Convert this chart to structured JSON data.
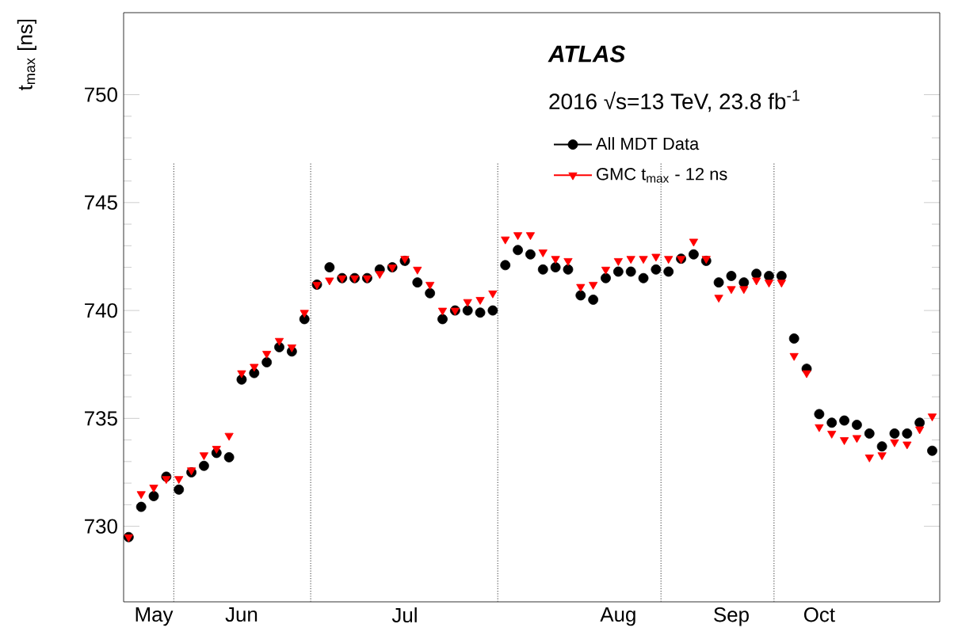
{
  "chart_data": {
    "type": "scatter",
    "ylabel": "t$_{max}$ [ns]",
    "annotations": [
      "ATLAS",
      "2016 √s=13 TeV, 23.8 fb$^{-1}$"
    ],
    "categories": [
      null,
      null,
      "May",
      null,
      null,
      null,
      null,
      null,
      null,
      "Jun",
      null,
      null,
      null,
      null,
      null,
      null,
      null,
      null,
      null,
      null,
      null,
      null,
      "Jul",
      null,
      null,
      null,
      null,
      null,
      null,
      null,
      null,
      null,
      null,
      null,
      null,
      null,
      null,
      null,
      null,
      "Aug",
      null,
      null,
      null,
      null,
      null,
      null,
      null,
      null,
      "Sep",
      null,
      null,
      null,
      null,
      null,
      null,
      "Oct",
      null,
      null,
      null,
      null,
      null,
      null,
      null,
      null,
      null
    ],
    "series": [
      {
        "name": "All MDT Data",
        "color": "#000000",
        "marker": "circle",
        "values": [
          729.5,
          730.9,
          731.4,
          732.3,
          731.7,
          732.5,
          732.8,
          733.4,
          733.2,
          736.8,
          737.1,
          737.6,
          738.3,
          738.1,
          739.6,
          741.2,
          742.0,
          741.5,
          741.5,
          741.5,
          741.9,
          742.0,
          742.3,
          741.3,
          740.8,
          739.6,
          740.0,
          740.0,
          739.9,
          740.0,
          742.1,
          742.8,
          742.6,
          741.9,
          742.0,
          741.9,
          740.7,
          740.5,
          741.5,
          741.8,
          741.8,
          741.5,
          741.9,
          741.8,
          742.4,
          742.6,
          742.3,
          741.3,
          741.6,
          741.3,
          741.7,
          741.6,
          741.6,
          738.7,
          737.3,
          735.2,
          734.8,
          734.9,
          734.7,
          734.3,
          733.7,
          734.3,
          734.3,
          734.8,
          733.5
        ]
      },
      {
        "name": "GMC t$_{max}$ - 12 ns",
        "color": "#ff0000",
        "marker": "triangle",
        "values": [
          729.5,
          731.5,
          731.8,
          732.2,
          732.2,
          732.6,
          733.3,
          733.6,
          734.2,
          737.1,
          737.4,
          738.0,
          738.6,
          738.3,
          739.9,
          741.2,
          741.4,
          741.5,
          741.5,
          741.5,
          741.7,
          742.0,
          742.4,
          741.9,
          741.2,
          740.0,
          740.0,
          740.4,
          740.5,
          740.8,
          743.3,
          743.5,
          743.5,
          742.7,
          742.4,
          742.3,
          741.1,
          741.2,
          741.9,
          742.3,
          742.4,
          742.4,
          742.5,
          742.4,
          742.4,
          743.2,
          742.4,
          740.6,
          741.0,
          741.0,
          741.4,
          741.3,
          741.3,
          737.9,
          737.1,
          734.6,
          734.3,
          734.0,
          734.1,
          733.2,
          733.3,
          733.9,
          733.8,
          734.5,
          735.1
        ]
      }
    ],
    "ylim": [
      726.5,
      753.8
    ],
    "yticks": [
      730,
      735,
      740,
      745,
      750
    ],
    "grid": false,
    "legend": "top right"
  }
}
